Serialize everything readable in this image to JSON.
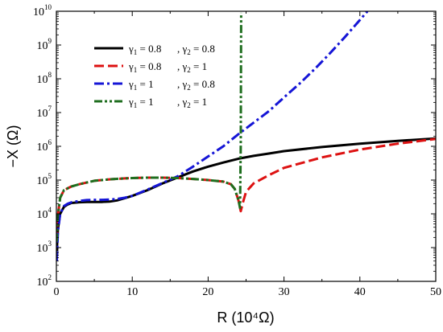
{
  "chart_data": {
    "type": "line",
    "xlabel": "R (10⁴Ω)",
    "ylabel": "−X (Ω)",
    "x_scale": "linear",
    "y_scale": "log",
    "xlim": [
      0,
      50
    ],
    "ylim": [
      100,
      10000000000
    ],
    "xticks": [
      0,
      10,
      20,
      30,
      40,
      50
    ],
    "yticks": [
      {
        "base": "10",
        "exp": "2",
        "value": 100
      },
      {
        "base": "10",
        "exp": "3",
        "value": 1000
      },
      {
        "base": "10",
        "exp": "4",
        "value": 10000
      },
      {
        "base": "10",
        "exp": "5",
        "value": 100000
      },
      {
        "base": "10",
        "exp": "6",
        "value": 1000000
      },
      {
        "base": "10",
        "exp": "7",
        "value": 10000000
      },
      {
        "base": "10",
        "exp": "8",
        "value": 100000000
      },
      {
        "base": "10",
        "exp": "9",
        "value": 1000000000
      },
      {
        "base": "10",
        "exp": "10",
        "value": 10000000000
      }
    ],
    "grid": false,
    "legend_position": "top-left",
    "series": [
      {
        "name": "γ1 = 0.8 , γ2 = 0.8",
        "label": {
          "g1": "0.8",
          "g2": "0.8"
        },
        "color": "#000000",
        "dash": "solid",
        "x": [
          0.05,
          0.2,
          0.5,
          1,
          1.5,
          2,
          3,
          4,
          5,
          6,
          7,
          8,
          9,
          10,
          12,
          14,
          16,
          18,
          20,
          22,
          24,
          26,
          28,
          30,
          35,
          40,
          45,
          50
        ],
        "y": [
          800,
          3500,
          10000,
          16000,
          19000,
          21000,
          22000,
          22500,
          22500,
          22500,
          23000,
          25000,
          29000,
          34000,
          50000,
          80000,
          120000,
          180000,
          250000,
          330000,
          430000,
          520000,
          610000,
          720000,
          950000,
          1200000,
          1450000,
          1700000
        ]
      },
      {
        "name": "γ1 = 0.8 , γ2 = 1",
        "label": {
          "g1": "0.8",
          "g2": "1"
        },
        "color": "#dd1111",
        "dash": "dash",
        "x": [
          0.05,
          0.2,
          0.5,
          1,
          2,
          3,
          5,
          7,
          9,
          10,
          12,
          14,
          16,
          18,
          20,
          22,
          23,
          23.5,
          24,
          24.3,
          24.6,
          25,
          26,
          28,
          30,
          35,
          40,
          45,
          50
        ],
        "y": [
          1500,
          9000,
          30000,
          50000,
          65000,
          75000,
          95000,
          105000,
          112000,
          115000,
          118000,
          118000,
          115000,
          108000,
          100000,
          90000,
          75000,
          55000,
          25000,
          12000,
          22000,
          45000,
          80000,
          140000,
          230000,
          470000,
          800000,
          1200000,
          1650000
        ]
      },
      {
        "name": "γ1 = 1 , γ2 = 0.8",
        "label": {
          "g1": "1",
          "g2": "0.8"
        },
        "color": "#1515d6",
        "dash": "dash-dot",
        "x": [
          0.05,
          0.2,
          0.5,
          1,
          1.5,
          2,
          3,
          4,
          5,
          6,
          7,
          8,
          9,
          10,
          12,
          14,
          16,
          18,
          20,
          22,
          24,
          26,
          28,
          30,
          32,
          34,
          36,
          38,
          40,
          41
        ],
        "y": [
          400,
          3000,
          10000,
          17000,
          20000,
          22000,
          24000,
          25500,
          26000,
          26000,
          26500,
          27500,
          30000,
          34000,
          52000,
          82000,
          130000,
          250000,
          500000,
          1000000,
          2300000,
          5000000,
          11000000,
          28000000,
          70000000,
          190000000,
          550000000,
          1700000000,
          5500000000,
          10000000000
        ]
      },
      {
        "name": "γ1 = 1 , γ2 = 1",
        "label": {
          "g1": "1",
          "g2": "1"
        },
        "color": "#1e6e1e",
        "dash": "dash-dot-dot",
        "x": [
          0.05,
          0.2,
          0.5,
          1,
          2,
          3,
          5,
          7,
          9,
          10,
          12,
          14,
          16,
          18,
          20,
          22,
          23,
          23.5,
          24,
          24.2,
          24.3,
          24.35
        ],
        "y": [
          1500,
          9000,
          30000,
          50000,
          65000,
          75000,
          95000,
          105000,
          112000,
          115000,
          118000,
          118000,
          115000,
          108000,
          100000,
          90000,
          75000,
          55000,
          25000,
          15000,
          1000000,
          9000000000
        ]
      }
    ]
  }
}
